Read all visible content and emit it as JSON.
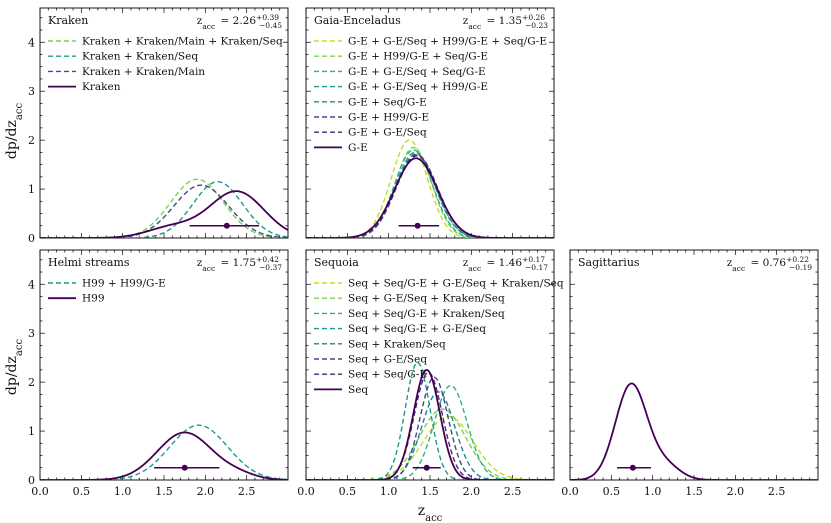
{
  "figure": {
    "ylabel": "dp/dz",
    "ylabel_sub": "acc",
    "xlabel": "z",
    "xlabel_sub": "acc",
    "zacc_prefix": "z",
    "zacc_prefix_sub": "acc",
    "x_ticks": [
      "0.0",
      "0.5",
      "1.0",
      "1.5",
      "2.0",
      "2.5"
    ],
    "y_ticks": [
      "0",
      "1",
      "2",
      "3",
      "4"
    ]
  },
  "colors": {
    "final": "#440154",
    "palette": [
      "#bddf26",
      "#7ad151",
      "#2fb47c",
      "#1f988b",
      "#26828e",
      "#31688e",
      "#3e4a89",
      "#482878"
    ]
  },
  "chart_data": [
    {
      "type": "line",
      "title": "Kraken",
      "zacc": {
        "value": "2.26",
        "plus": "+0.39",
        "minus": "−0.45"
      },
      "xlim": [
        0,
        3
      ],
      "ylim": [
        0,
        4.7
      ],
      "series": [
        {
          "name": "Kraken + Kraken/Main + Kraken/Seq",
          "style": "dashed",
          "color": "#7ad151",
          "peaks": [
            {
              "mu": 1.9,
              "sigma": 0.32,
              "amp": 1.2
            }
          ]
        },
        {
          "name": "Kraken + Kraken/Seq",
          "style": "dashed",
          "color": "#1f988b",
          "peaks": [
            {
              "mu": 2.15,
              "sigma": 0.3,
              "amp": 1.15
            }
          ]
        },
        {
          "name": "Kraken + Kraken/Main",
          "style": "dashed",
          "color": "#3e4a89",
          "peaks": [
            {
              "mu": 1.95,
              "sigma": 0.33,
              "amp": 1.08
            }
          ]
        },
        {
          "name": "Kraken",
          "style": "solid",
          "color": "#440154",
          "peaks": [
            {
              "mu": 2.38,
              "sigma": 0.33,
              "amp": 0.95
            },
            {
              "mu": 1.6,
              "sigma": 0.3,
              "amp": 0.22
            }
          ]
        }
      ],
      "marker": {
        "x": 2.26,
        "y": 0.25,
        "lo": 1.81,
        "hi": 2.65
      }
    },
    {
      "type": "line",
      "title": "Gaia-Enceladus",
      "zacc": {
        "value": "1.35",
        "plus": "+0.26",
        "minus": "−0.23"
      },
      "xlim": [
        0,
        3
      ],
      "ylim": [
        0,
        4.7
      ],
      "series": [
        {
          "name": "G-E + G-E/Seq + H99/G-E + Seq/G-E",
          "style": "dashed",
          "color": "#bddf26",
          "peaks": [
            {
              "mu": 1.25,
              "sigma": 0.22,
              "amp": 2.0
            }
          ]
        },
        {
          "name": "G-E + H99/G-E + Seq/G-E",
          "style": "dashed",
          "color": "#7ad151",
          "peaks": [
            {
              "mu": 1.3,
              "sigma": 0.22,
              "amp": 1.85
            }
          ]
        },
        {
          "name": "G-E + G-E/Seq + Seq/G-E",
          "style": "dashed",
          "color": "#2fb47c",
          "peaks": [
            {
              "mu": 1.3,
              "sigma": 0.23,
              "amp": 1.8
            }
          ]
        },
        {
          "name": "G-E + G-E/Seq + H99/G-E",
          "style": "dashed",
          "color": "#1f988b",
          "peaks": [
            {
              "mu": 1.32,
              "sigma": 0.24,
              "amp": 1.75
            }
          ]
        },
        {
          "name": "G-E + Seq/G-E",
          "style": "dashed",
          "color": "#26828e",
          "peaks": [
            {
              "mu": 1.33,
              "sigma": 0.24,
              "amp": 1.72
            }
          ]
        },
        {
          "name": "G-E + H99/G-E",
          "style": "dashed",
          "color": "#3e4a89",
          "peaks": [
            {
              "mu": 1.34,
              "sigma": 0.25,
              "amp": 1.7
            }
          ]
        },
        {
          "name": "G-E + G-E/Seq",
          "style": "dashed",
          "color": "#482878",
          "peaks": [
            {
              "mu": 1.34,
              "sigma": 0.25,
              "amp": 1.68
            }
          ]
        },
        {
          "name": "G-E",
          "style": "solid",
          "color": "#440154",
          "peaks": [
            {
              "mu": 1.33,
              "sigma": 0.26,
              "amp": 1.63
            }
          ]
        }
      ],
      "marker": {
        "x": 1.35,
        "y": 0.25,
        "lo": 1.12,
        "hi": 1.61
      }
    },
    {
      "type": "line",
      "title": "Helmi streams",
      "zacc": {
        "value": "1.75",
        "plus": "+0.42",
        "minus": "−0.37"
      },
      "xlim": [
        0,
        3
      ],
      "ylim": [
        0,
        4.7
      ],
      "series": [
        {
          "name": "H99 + H99/G-E",
          "style": "dashed",
          "color": "#1f988b",
          "peaks": [
            {
              "mu": 1.92,
              "sigma": 0.35,
              "amp": 1.12
            }
          ]
        },
        {
          "name": "H99",
          "style": "solid",
          "color": "#440154",
          "peaks": [
            {
              "mu": 1.75,
              "sigma": 0.33,
              "amp": 0.97
            },
            {
              "mu": 2.4,
              "sigma": 0.22,
              "amp": 0.1
            }
          ]
        }
      ],
      "marker": {
        "x": 1.75,
        "y": 0.25,
        "lo": 1.38,
        "hi": 2.17
      }
    },
    {
      "type": "line",
      "title": "Sequoia",
      "zacc": {
        "value": "1.46",
        "plus": "+0.17",
        "minus": "−0.17"
      },
      "xlim": [
        0,
        3
      ],
      "ylim": [
        0,
        4.7
      ],
      "series": [
        {
          "name": "Seq + Seq/G-E + G-E/Seq + Kraken/Seq",
          "style": "dashed",
          "color": "#bddf26",
          "peaks": [
            {
              "mu": 1.72,
              "sigma": 0.3,
              "amp": 1.3
            }
          ]
        },
        {
          "name": "Seq + G-E/Seq + Kraken/Seq",
          "style": "dashed",
          "color": "#7ad151",
          "peaks": [
            {
              "mu": 1.65,
              "sigma": 0.28,
              "amp": 1.45
            }
          ]
        },
        {
          "name": "Seq + Seq/G-E + Kraken/Seq",
          "style": "dashed",
          "color": "#2fb47c",
          "peaks": [
            {
              "mu": 1.75,
              "sigma": 0.2,
              "amp": 1.93
            }
          ]
        },
        {
          "name": "Seq + Seq/G-E + G-E/Seq",
          "style": "dashed",
          "color": "#1f988b",
          "peaks": [
            {
              "mu": 1.35,
              "sigma": 0.15,
              "amp": 2.4
            }
          ]
        },
        {
          "name": "Seq + Kraken/Seq",
          "style": "dashed",
          "color": "#26828e",
          "peaks": [
            {
              "mu": 1.6,
              "sigma": 0.2,
              "amp": 1.8
            }
          ]
        },
        {
          "name": "Seq + G-E/Seq",
          "style": "dashed",
          "color": "#3e4a89",
          "peaks": [
            {
              "mu": 1.55,
              "sigma": 0.17,
              "amp": 2.1
            }
          ]
        },
        {
          "name": "Seq + Seq/G-E",
          "style": "dashed",
          "color": "#482878",
          "peaks": [
            {
              "mu": 1.48,
              "sigma": 0.17,
              "amp": 2.2
            }
          ]
        },
        {
          "name": "Seq",
          "style": "solid",
          "color": "#440154",
          "peaks": [
            {
              "mu": 1.46,
              "sigma": 0.16,
              "amp": 2.25
            }
          ]
        }
      ],
      "marker": {
        "x": 1.46,
        "y": 0.25,
        "lo": 1.29,
        "hi": 1.63
      }
    },
    {
      "type": "line",
      "title": "Sagittarius",
      "zacc": {
        "value": "0.76",
        "plus": "+0.22",
        "minus": "−0.19"
      },
      "xlim": [
        0,
        3
      ],
      "ylim": [
        0,
        4.7
      ],
      "series": [
        {
          "name": "Sagittarius",
          "style": "solid",
          "color": "#440154",
          "peaks": [
            {
              "mu": 0.74,
              "sigma": 0.19,
              "amp": 1.95
            },
            {
              "mu": 1.15,
              "sigma": 0.18,
              "amp": 0.3
            }
          ]
        }
      ],
      "marker": {
        "x": 0.76,
        "y": 0.25,
        "lo": 0.57,
        "hi": 0.98
      }
    }
  ]
}
